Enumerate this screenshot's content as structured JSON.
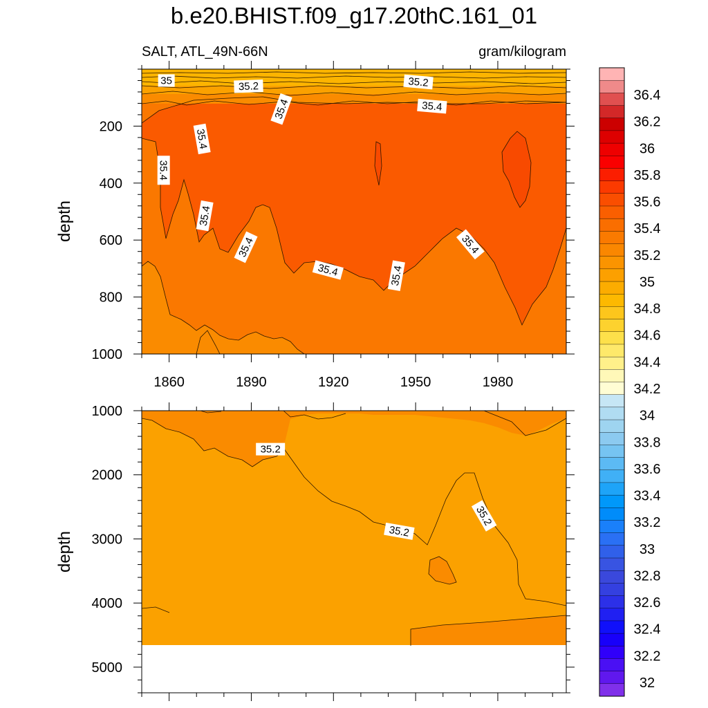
{
  "title": "b.e20.BHIST.f09_g17.20thC.161_01",
  "subtitle_left": "SALT, ATL_49N-66N",
  "subtitle_right": "gram/kilogram",
  "colors": {
    "fill_35_0_35_2": "#fa8b00",
    "fill_35_2_35_4": "#fa7800",
    "fill_35_4_35_6": "#fa5a00",
    "fill_35_6": "#f84a00",
    "fill_34_8_35_0": "#fba100",
    "fill_shallow": "#fdb400",
    "missing": "#ffffff"
  },
  "chart_data": [
    {
      "type": "contour",
      "panel": "upper",
      "variable": "SALT",
      "region": "ATL_49N-66N",
      "units": "gram/kilogram",
      "x_range": [
        1850,
        2005
      ],
      "x_ticks": [
        1860,
        1890,
        1920,
        1950,
        1980
      ],
      "ylabel": "depth",
      "y_range": [
        0,
        1000
      ],
      "y_reversed": true,
      "y_ticks": [
        200,
        400,
        600,
        800,
        1000
      ],
      "contour_interval": 0.1,
      "contour_labels": [
        {
          "text": "35",
          "x": 1859,
          "y": 40
        },
        {
          "text": "35.2",
          "x": 1889,
          "y": 60
        },
        {
          "text": "35.2",
          "x": 1951,
          "y": 45
        },
        {
          "text": "35.4",
          "x": 1901,
          "y": 140
        },
        {
          "text": "35.4",
          "x": 1956,
          "y": 130
        },
        {
          "text": "35.4",
          "x": 1872,
          "y": 245
        },
        {
          "text": "35.4",
          "x": 1858,
          "y": 355
        },
        {
          "text": "35.4",
          "x": 1873,
          "y": 515
        },
        {
          "text": "35.4",
          "x": 1888,
          "y": 625
        },
        {
          "text": "35.4",
          "x": 1918,
          "y": 705
        },
        {
          "text": "35.4",
          "x": 1943,
          "y": 725
        },
        {
          "text": "35.4",
          "x": 1970,
          "y": 615
        }
      ],
      "field_ranges": {
        "near_surface_0_50": [
          34.6,
          35.1
        ],
        "upper_50_150": [
          35.2,
          35.4
        ],
        "core_150_650": [
          35.4,
          35.6
        ],
        "lower_650_1000": [
          35.2,
          35.4
        ]
      }
    },
    {
      "type": "contour",
      "panel": "lower",
      "variable": "SALT",
      "region": "ATL_49N-66N",
      "units": "gram/kilogram",
      "x_range": [
        1850,
        2005
      ],
      "ylabel": "depth",
      "y_range": [
        1000,
        5400
      ],
      "y_reversed": true,
      "y_ticks": [
        1000,
        2000,
        3000,
        4000,
        5000
      ],
      "missing_below": 4600,
      "contour_labels": [
        {
          "text": "35.2",
          "x": 1897,
          "y": 1600
        },
        {
          "text": "35.2",
          "x": 1944,
          "y": 2880
        },
        {
          "text": "35.2",
          "x": 1975,
          "y": 2640
        }
      ],
      "field_ranges": {
        "upper_slope": [
          35.2,
          35.3
        ],
        "deep_interior": [
          35.1,
          35.2
        ]
      }
    }
  ],
  "colorbar": {
    "labels": [
      "36.4",
      "36.2",
      "36",
      "35.8",
      "35.6",
      "35.4",
      "35.2",
      "35",
      "34.8",
      "34.6",
      "34.4",
      "34.2",
      "34",
      "33.8",
      "33.6",
      "33.4",
      "33.2",
      "33",
      "32.8",
      "32.6",
      "32.4",
      "32.2",
      "32"
    ],
    "colors": [
      "#ffb4b4",
      "#ef8a8a",
      "#e05050",
      "#d32828",
      "#cc0000",
      "#dd0000",
      "#ee0000",
      "#fa0000",
      "#fb1e00",
      "#fb3a00",
      "#fa4e00",
      "#fa5f00",
      "#fa6e00",
      "#fa7a00",
      "#fa8700",
      "#fb9400",
      "#fca000",
      "#fcac00",
      "#fdb900",
      "#fdc61c",
      "#fdd22e",
      "#fde04a",
      "#fee96a",
      "#fff08a",
      "#fff8b8",
      "#fffdd4",
      "#c6e6f5",
      "#b0dcf2",
      "#9ed4f0",
      "#8ccaf0",
      "#76c4f2",
      "#5cbaf4",
      "#40b0f6",
      "#1ea4f8",
      "#0098fa",
      "#008cfa",
      "#1a80fa",
      "#2a70f4",
      "#3060ea",
      "#3854e2",
      "#3a48dc",
      "#3440e0",
      "#2c30e8",
      "#2020f2",
      "#1010fa",
      "#1800fa",
      "#3000fa",
      "#4a10f4",
      "#6018ee",
      "#8030ea"
    ]
  }
}
